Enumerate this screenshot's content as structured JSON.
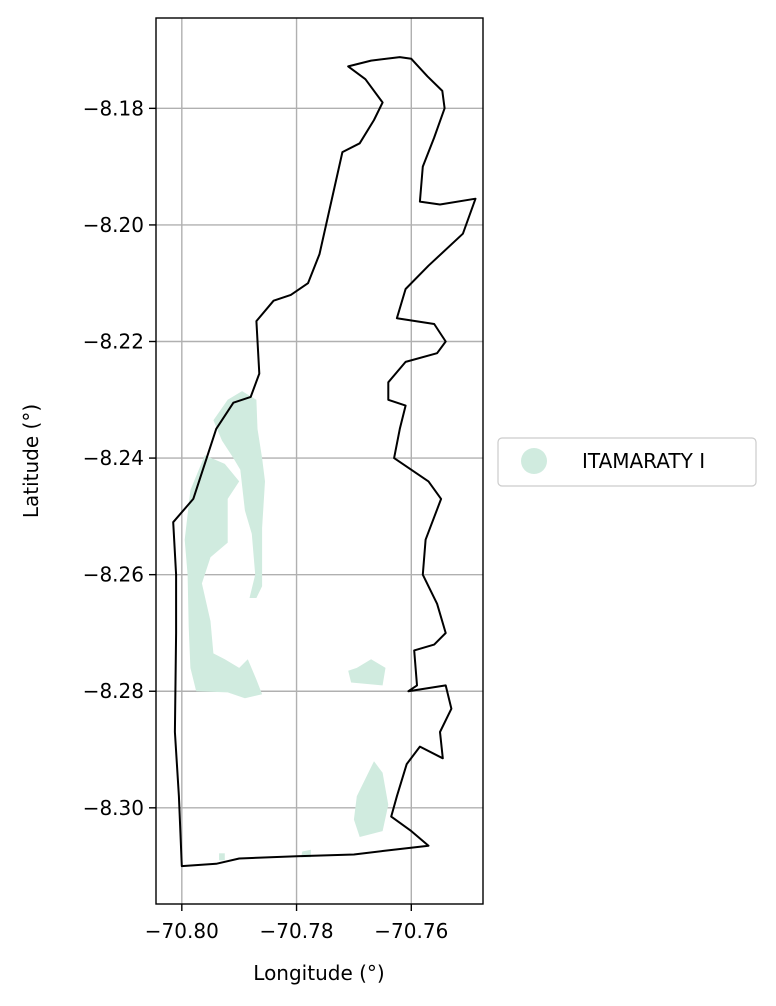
{
  "chart_data": {
    "type": "map",
    "xlabel": "Longitude (°)",
    "ylabel": "Latitude (°)",
    "xlim": [
      -70.8045,
      -70.7475
    ],
    "ylim": [
      -8.3165,
      -8.1645
    ],
    "x_ticks": [
      -70.8,
      -70.78,
      -70.76
    ],
    "x_tick_labels": [
      "−70.80",
      "−70.78",
      "−70.76"
    ],
    "y_ticks": [
      -8.18,
      -8.2,
      -8.22,
      -8.24,
      -8.26,
      -8.28,
      -8.3
    ],
    "y_tick_labels": [
      "−8.18",
      "−8.20",
      "−8.22",
      "−8.24",
      "−8.26",
      "−8.28",
      "−8.30"
    ],
    "grid": true,
    "legend": {
      "placement": "center-right outside",
      "entries": [
        {
          "label": "ITAMARATY I",
          "color": "#d0ebdf"
        }
      ]
    },
    "colors": {
      "boundary": "#000000",
      "fill": "#d0ebdf",
      "grid": "#b0b0b0"
    },
    "boundary": [
      [
        -70.76,
        -8.1715
      ],
      [
        -70.7572,
        -8.1745
      ],
      [
        -70.7546,
        -8.177
      ],
      [
        -70.7542,
        -8.18
      ],
      [
        -70.756,
        -8.185
      ],
      [
        -70.758,
        -8.19
      ],
      [
        -70.7585,
        -8.196
      ],
      [
        -70.755,
        -8.1965
      ],
      [
        -70.7488,
        -8.1955
      ],
      [
        -70.751,
        -8.2015
      ],
      [
        -70.757,
        -8.207
      ],
      [
        -70.761,
        -8.211
      ],
      [
        -70.7625,
        -8.216
      ],
      [
        -70.756,
        -8.217
      ],
      [
        -70.754,
        -8.22
      ],
      [
        -70.7555,
        -8.222
      ],
      [
        -70.761,
        -8.2235
      ],
      [
        -70.764,
        -8.227
      ],
      [
        -70.764,
        -8.23
      ],
      [
        -70.761,
        -8.231
      ],
      [
        -70.762,
        -8.235
      ],
      [
        -70.763,
        -8.24
      ],
      [
        -70.757,
        -8.244
      ],
      [
        -70.7548,
        -8.247
      ],
      [
        -70.7575,
        -8.254
      ],
      [
        -70.758,
        -8.26
      ],
      [
        -70.7555,
        -8.265
      ],
      [
        -70.754,
        -8.27
      ],
      [
        -70.756,
        -8.272
      ],
      [
        -70.7595,
        -8.273
      ],
      [
        -70.759,
        -8.279
      ],
      [
        -70.7605,
        -8.28
      ],
      [
        -70.754,
        -8.279
      ],
      [
        -70.753,
        -8.283
      ],
      [
        -70.755,
        -8.287
      ],
      [
        -70.7545,
        -8.2915
      ],
      [
        -70.7585,
        -8.2895
      ],
      [
        -70.7608,
        -8.2925
      ],
      [
        -70.7625,
        -8.298
      ],
      [
        -70.7635,
        -8.3015
      ],
      [
        -70.76,
        -8.304
      ],
      [
        -70.757,
        -8.3065
      ],
      [
        -70.765,
        -8.3074
      ],
      [
        -70.77,
        -8.308
      ],
      [
        -70.78,
        -8.3083
      ],
      [
        -70.79,
        -8.3087
      ],
      [
        -70.794,
        -8.3096
      ],
      [
        -70.8,
        -8.31
      ],
      [
        -70.8005,
        -8.298
      ],
      [
        -70.8012,
        -8.287
      ],
      [
        -70.801,
        -8.27
      ],
      [
        -70.801,
        -8.26
      ],
      [
        -70.8015,
        -8.251
      ],
      [
        -70.798,
        -8.247
      ],
      [
        -70.794,
        -8.235
      ],
      [
        -70.791,
        -8.2305
      ],
      [
        -70.788,
        -8.2295
      ],
      [
        -70.7865,
        -8.2255
      ],
      [
        -70.787,
        -8.2165
      ],
      [
        -70.784,
        -8.213
      ],
      [
        -70.781,
        -8.212
      ],
      [
        -70.778,
        -8.21
      ],
      [
        -70.776,
        -8.205
      ],
      [
        -70.772,
        -8.1875
      ],
      [
        -70.769,
        -8.186
      ],
      [
        -70.7665,
        -8.182
      ],
      [
        -70.765,
        -8.179
      ],
      [
        -70.768,
        -8.175
      ],
      [
        -70.771,
        -8.1728
      ],
      [
        -70.767,
        -8.1718
      ],
      [
        -70.762,
        -8.1712
      ],
      [
        -70.76,
        -8.1715
      ]
    ],
    "areas": [
      [
        [
          -70.7895,
          -8.2285
        ],
        [
          -70.787,
          -8.23
        ],
        [
          -70.7868,
          -8.235
        ],
        [
          -70.786,
          -8.24
        ],
        [
          -70.7855,
          -8.244
        ],
        [
          -70.786,
          -8.252
        ],
        [
          -70.786,
          -8.262
        ],
        [
          -70.787,
          -8.264
        ],
        [
          -70.7882,
          -8.264
        ],
        [
          -70.7872,
          -8.26
        ],
        [
          -70.7878,
          -8.253
        ],
        [
          -70.789,
          -8.249
        ],
        [
          -70.7898,
          -8.242
        ],
        [
          -70.791,
          -8.24
        ],
        [
          -70.793,
          -8.237
        ],
        [
          -70.7945,
          -8.2335
        ],
        [
          -70.792,
          -8.23
        ]
      ],
      [
        [
          -70.796,
          -8.2395
        ],
        [
          -70.7985,
          -8.2455
        ],
        [
          -70.7995,
          -8.254
        ],
        [
          -70.799,
          -8.26
        ],
        [
          -70.7988,
          -8.269
        ],
        [
          -70.7985,
          -8.276
        ],
        [
          -70.7975,
          -8.28
        ],
        [
          -70.792,
          -8.2802
        ],
        [
          -70.789,
          -8.2812
        ],
        [
          -70.786,
          -8.2805
        ],
        [
          -70.787,
          -8.278
        ],
        [
          -70.7885,
          -8.2745
        ],
        [
          -70.79,
          -8.276
        ],
        [
          -70.7925,
          -8.2745
        ],
        [
          -70.7945,
          -8.2735
        ],
        [
          -70.795,
          -8.268
        ],
        [
          -70.7965,
          -8.2615
        ],
        [
          -70.795,
          -8.257
        ],
        [
          -70.792,
          -8.2545
        ],
        [
          -70.792,
          -8.247
        ],
        [
          -70.79,
          -8.244
        ],
        [
          -70.7925,
          -8.241
        ]
      ],
      [
        [
          -70.7695,
          -8.276
        ],
        [
          -70.771,
          -8.2765
        ],
        [
          -70.7705,
          -8.2785
        ],
        [
          -70.765,
          -8.279
        ],
        [
          -70.7645,
          -8.276
        ],
        [
          -70.767,
          -8.2745
        ]
      ],
      [
        [
          -70.7665,
          -8.292
        ],
        [
          -70.765,
          -8.294
        ],
        [
          -70.764,
          -8.2995
        ],
        [
          -70.765,
          -8.304
        ],
        [
          -70.769,
          -8.305
        ],
        [
          -70.77,
          -8.302
        ],
        [
          -70.7695,
          -8.298
        ],
        [
          -70.768,
          -8.295
        ]
      ],
      [
        [
          -70.779,
          -8.3075
        ],
        [
          -70.7775,
          -8.3072
        ],
        [
          -70.7775,
          -8.3085
        ],
        [
          -70.7792,
          -8.3085
        ]
      ],
      [
        [
          -70.7925,
          -8.3078
        ],
        [
          -70.7935,
          -8.3078
        ],
        [
          -70.7935,
          -8.309
        ],
        [
          -70.7925,
          -8.309
        ]
      ]
    ]
  }
}
